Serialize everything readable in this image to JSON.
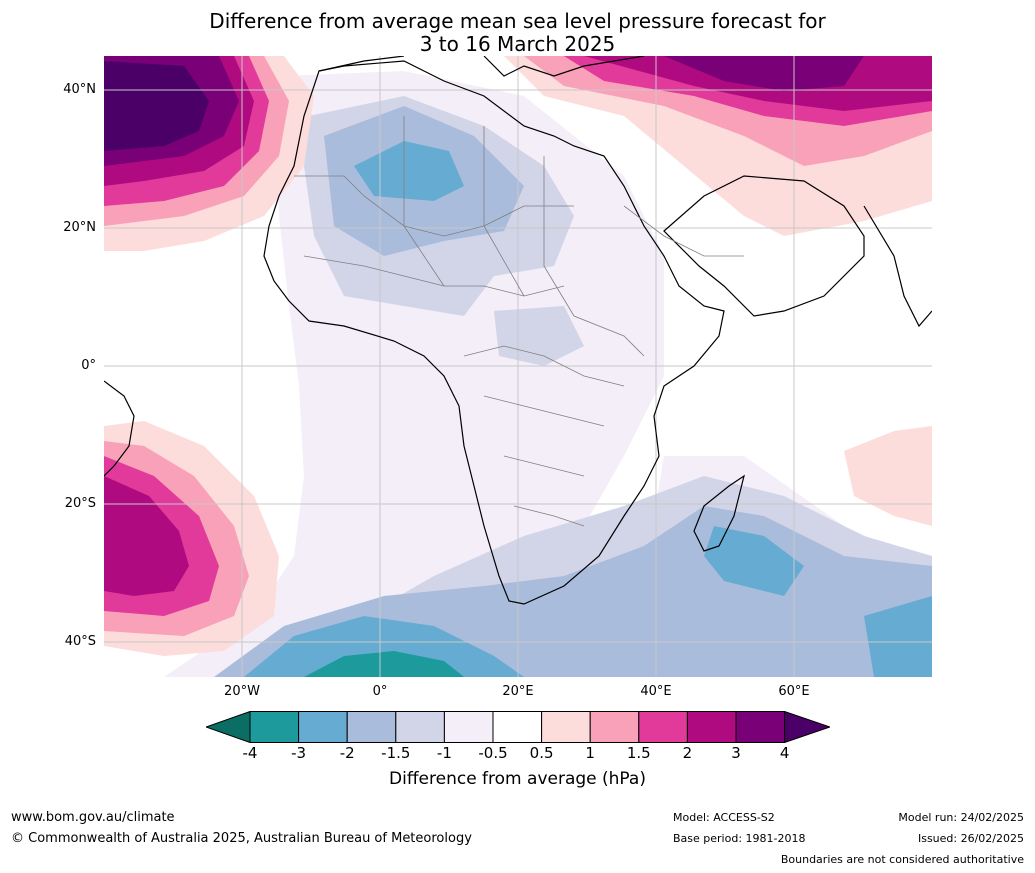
{
  "title": {
    "line1": "Difference from average mean sea level pressure forecast for",
    "line2": "3 to 16 March 2025"
  },
  "axes": {
    "lat_labels": [
      "40°N",
      "20°N",
      "0°",
      "20°S",
      "40°S"
    ],
    "lon_labels": [
      "20°W",
      "0°",
      "20°E",
      "40°E",
      "60°E"
    ]
  },
  "colorbar": {
    "label": "Difference from average (hPa)",
    "ticks": [
      "-4",
      "-3",
      "-2",
      "-1.5",
      "-1",
      "-0.5",
      "0.5",
      "1",
      "1.5",
      "2",
      "3",
      "4"
    ],
    "colors": {
      "lt_-4": "#0b6e64",
      "-4_-3": "#1d9a9c",
      "-3_-2": "#66abd1",
      "-2_-1.5": "#a9bcdc",
      "-1.5_-1": "#d2d4e8",
      "-1_-0.5": "#f3eef7",
      "-0.5_0.5": "#ffffff",
      "0.5_1": "#fddcdc",
      "1_1.5": "#f8a1b8",
      "1.5_2": "#e13a9a",
      "2_3": "#b00a80",
      "3_4": "#7a0077",
      "gt_4": "#4a0066"
    }
  },
  "footer": {
    "website": "www.bom.gov.au/climate",
    "copyright": "© Commonwealth of Australia 2025, Australian Bureau of Meteorology",
    "model": "Model: ACCESS-S2",
    "base_period": "Base period: 1981-2018",
    "model_run": "Model run: 24/02/2025",
    "issued": "Issued: 26/02/2025",
    "boundaries_note": "Boundaries are not considered authoritative"
  }
}
